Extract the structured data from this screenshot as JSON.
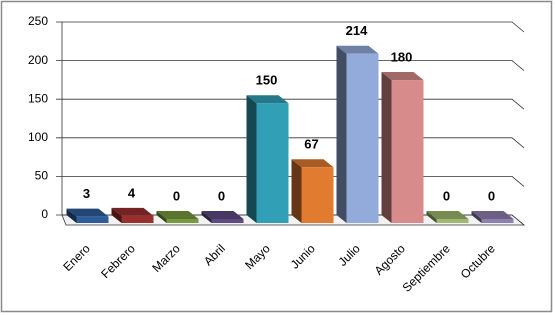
{
  "chart_data": {
    "type": "bar3d",
    "categories": [
      "Enero",
      "Febrero",
      "Marzo",
      "Abril",
      "Mayo",
      "Junio",
      "Julio",
      "Agosto",
      "Septiembre",
      "Octubre"
    ],
    "values": [
      3,
      4,
      0,
      0,
      150,
      67,
      214,
      180,
      0,
      0
    ],
    "colors": [
      "#2f5d9c",
      "#9b2f2d",
      "#789a3f",
      "#5f4b82",
      "#31a0b6",
      "#e07b30",
      "#93abdb",
      "#d78b8a",
      "#9fb86e",
      "#8e80b0"
    ],
    "ylim": [
      0,
      250
    ],
    "yticks": [
      0,
      50,
      100,
      150,
      200,
      250
    ],
    "grid": true
  }
}
